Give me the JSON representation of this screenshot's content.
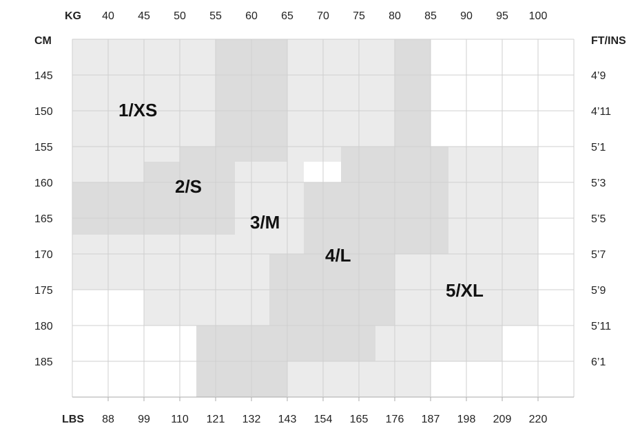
{
  "kg_axis": {
    "label": "KG",
    "ticks": [
      40,
      45,
      50,
      55,
      60,
      65,
      70,
      75,
      80,
      85,
      90,
      95,
      100
    ]
  },
  "lbs_axis": {
    "label": "LBS",
    "ticks": [
      88,
      99,
      110,
      121,
      132,
      143,
      154,
      165,
      176,
      187,
      198,
      209,
      220
    ]
  },
  "cm_axis": {
    "label": "CM",
    "ticks": [
      145,
      150,
      155,
      160,
      165,
      170,
      175,
      180,
      185
    ]
  },
  "ft_axis": {
    "label": "FT/INS",
    "ticks": [
      "4’9",
      "4’11",
      "5’1",
      "5’3",
      "5’5",
      "5’7",
      "5’9",
      "5’11",
      "6’1"
    ]
  },
  "sizes": [
    "1/XS",
    "2/S",
    "3/M",
    "4/L",
    "5/XL"
  ]
}
